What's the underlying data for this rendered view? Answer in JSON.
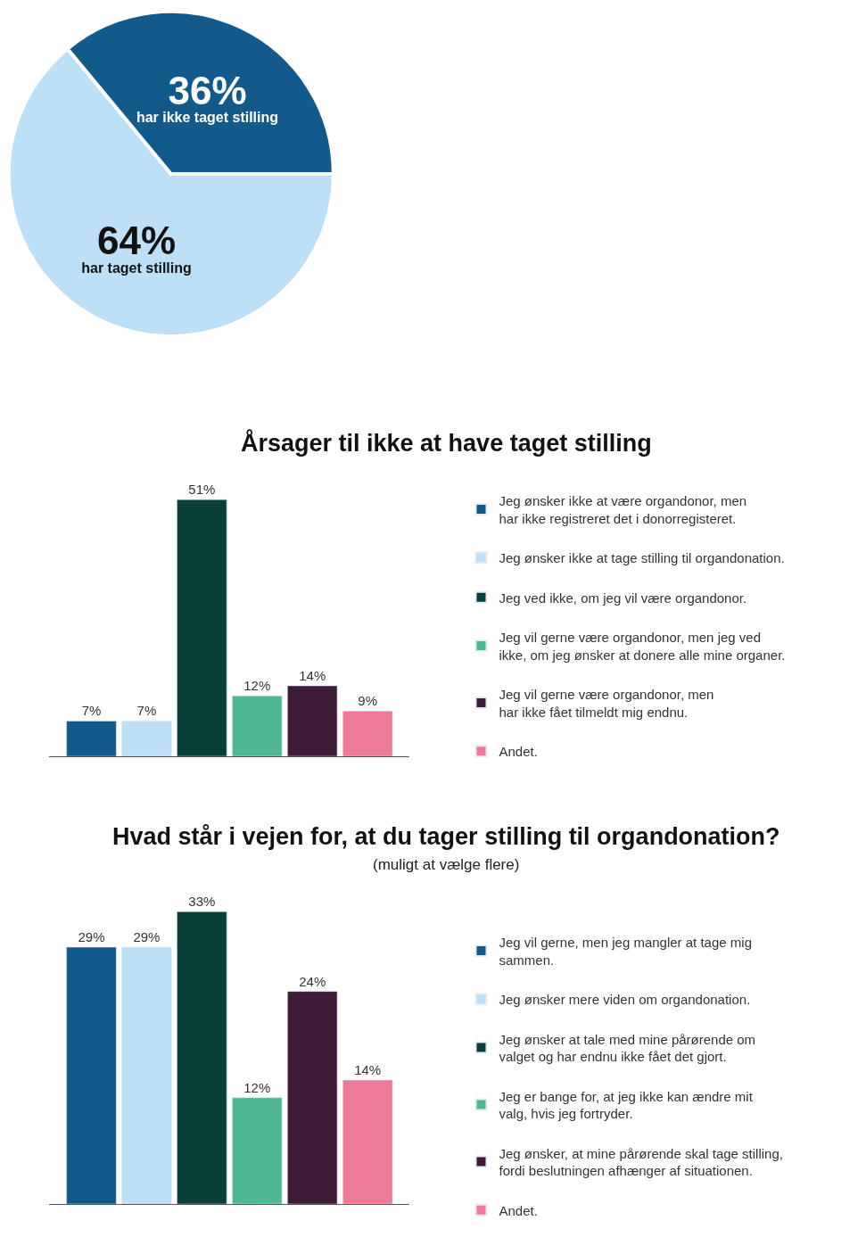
{
  "chart_data": [
    {
      "type": "pie",
      "categories": [
        "har taget stilling",
        "har ikke taget stilling"
      ],
      "values": [
        64,
        36
      ],
      "colors": [
        "#bde0f6",
        "#135a8c"
      ],
      "value_labels": [
        "64%",
        "36%"
      ]
    },
    {
      "type": "bar",
      "title": "Årsager til ikke at have taget stilling",
      "categories": [
        null
      ],
      "legend": "right",
      "series": [
        {
          "name": "Jeg ønsker ikke at være organdonor, men\nhar ikke registreret det i donorregisteret.",
          "color": "#135a8c",
          "values": [
            7
          ],
          "value_labels": [
            "7%"
          ]
        },
        {
          "name": "Jeg ønsker ikke at tage stilling til organdonation.",
          "color": "#bde0f6",
          "values": [
            7
          ],
          "value_labels": [
            "7%"
          ]
        },
        {
          "name": "Jeg ved ikke, om jeg vil være organdonor.",
          "color": "#083f38",
          "values": [
            51
          ],
          "value_labels": [
            "51%"
          ]
        },
        {
          "name": "Jeg vil gerne være organdonor, men jeg ved\nikke, om jeg ønsker at donere alle mine organer.",
          "color": "#4db891",
          "values": [
            12
          ],
          "value_labels": [
            "12%"
          ]
        },
        {
          "name": "Jeg vil gerne være organdonor, men\nhar ikke fået tilmeldt mig endnu.",
          "color": "#3f1b3a",
          "values": [
            14
          ],
          "value_labels": [
            "14%"
          ]
        },
        {
          "name": "Andet.",
          "color": "#ee7a97",
          "values": [
            9
          ],
          "value_labels": [
            "9%"
          ]
        }
      ]
    },
    {
      "type": "bar",
      "title": "Hvad står i vejen for, at du tager stilling til organdonation?",
      "subtitle": "(muligt at vælge flere)",
      "categories": [
        null
      ],
      "legend": "right",
      "series": [
        {
          "name": "Jeg vil gerne, men jeg mangler at tage mig\nsammen.",
          "color": "#135a8c",
          "values": [
            29
          ],
          "value_labels": [
            "29%"
          ]
        },
        {
          "name": "Jeg ønsker mere viden om organdonation.",
          "color": "#bde0f6",
          "values": [
            29
          ],
          "value_labels": [
            "29%"
          ]
        },
        {
          "name": "Jeg ønsker at tale med mine pårørende om\nvalget og har endnu ikke fået det gjort.",
          "color": "#083f38",
          "values": [
            33
          ],
          "value_labels": [
            "33%"
          ]
        },
        {
          "name": "Jeg er bange for, at jeg ikke kan ændre mit\nvalg, hvis jeg fortryder.",
          "color": "#4db891",
          "values": [
            12
          ],
          "value_labels": [
            "12%"
          ]
        },
        {
          "name": "Jeg ønsker, at mine pårørende skal tage stilling,\nfordi beslutningen afhænger af situationen.",
          "color": "#3f1b3a",
          "values": [
            24
          ],
          "value_labels": [
            "24%"
          ]
        },
        {
          "name": "Andet.",
          "color": "#ee7a97",
          "values": [
            14
          ],
          "value_labels": [
            "14%"
          ]
        }
      ]
    }
  ]
}
